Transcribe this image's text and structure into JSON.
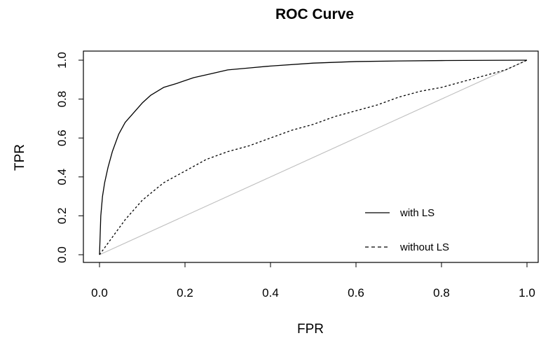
{
  "chart_data": {
    "type": "line",
    "title": "ROC Curve",
    "xlabel": "FPR",
    "ylabel": "TPR",
    "xlim": [
      0.0,
      1.0
    ],
    "ylim": [
      0.0,
      1.0
    ],
    "xticks": [
      "0.0",
      "0.2",
      "0.4",
      "0.6",
      "0.8",
      "1.0"
    ],
    "yticks": [
      "0.0",
      "0.2",
      "0.4",
      "0.6",
      "0.8",
      "1.0"
    ],
    "grid": false,
    "legend_position": "bottom-right",
    "series": [
      {
        "name": "with LS",
        "style": "solid",
        "color": "#000000",
        "x": [
          0.0,
          0.003,
          0.007,
          0.012,
          0.02,
          0.03,
          0.045,
          0.06,
          0.08,
          0.1,
          0.12,
          0.15,
          0.18,
          0.22,
          0.26,
          0.3,
          0.35,
          0.4,
          0.5,
          0.6,
          0.7,
          0.8,
          0.9,
          1.0
        ],
        "y": [
          0.0,
          0.2,
          0.3,
          0.37,
          0.45,
          0.53,
          0.62,
          0.68,
          0.73,
          0.78,
          0.82,
          0.86,
          0.88,
          0.91,
          0.93,
          0.95,
          0.96,
          0.97,
          0.985,
          0.993,
          0.996,
          0.998,
          0.999,
          1.0
        ]
      },
      {
        "name": "without LS",
        "style": "dashed",
        "color": "#000000",
        "x": [
          0.0,
          0.03,
          0.06,
          0.1,
          0.15,
          0.2,
          0.25,
          0.3,
          0.35,
          0.4,
          0.45,
          0.5,
          0.55,
          0.6,
          0.65,
          0.7,
          0.75,
          0.8,
          0.85,
          0.9,
          0.95,
          1.0
        ],
        "y": [
          0.0,
          0.09,
          0.18,
          0.28,
          0.37,
          0.43,
          0.49,
          0.53,
          0.56,
          0.6,
          0.64,
          0.67,
          0.71,
          0.74,
          0.77,
          0.81,
          0.84,
          0.86,
          0.89,
          0.92,
          0.95,
          1.0
        ]
      },
      {
        "name": "",
        "style": "solid",
        "color": "#bebebe",
        "x": [
          0.0,
          1.0
        ],
        "y": [
          0.0,
          1.0
        ]
      }
    ]
  }
}
